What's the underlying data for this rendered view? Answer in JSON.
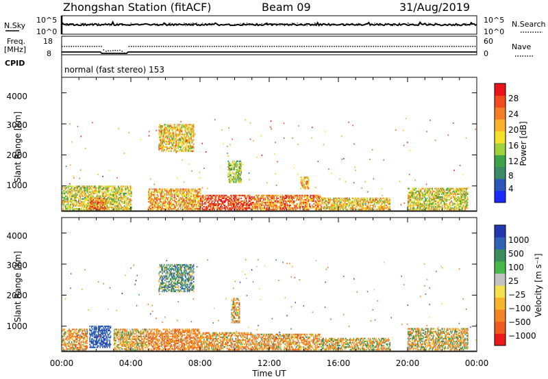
{
  "header": {
    "station": "Zhongshan Station (fitACF)",
    "beam": "Beam 09",
    "date": "31/Aug/2019"
  },
  "panels": {
    "nsky": {
      "label": "N.Sky",
      "tick_top": "10^5",
      "tick_bottom": "10^0",
      "right_tick_top": "10^5",
      "right_tick_bottom": "10^0",
      "right_label": "N.Search"
    },
    "freq": {
      "label_line1": "Freq.",
      "label_line2": "[MHz]",
      "tick_top": "18",
      "tick_bottom": "8",
      "right_tick_top": "60",
      "right_tick_bottom": "0",
      "right_label": "Nave"
    },
    "cpid": {
      "label": "CPID",
      "text": "normal (fast stereo) 153"
    }
  },
  "axes": {
    "ylabel": "Slant Range [km]",
    "xlabel": "Time UT",
    "yticks": [
      "1000",
      "2000",
      "3000",
      "4000"
    ],
    "xticks": [
      "00:00",
      "04:00",
      "08:00",
      "12:00",
      "16:00",
      "20:00",
      "00:00"
    ]
  },
  "colorbars": {
    "power": {
      "label": "Power [dB]",
      "ticks": [
        "4",
        "8",
        "12",
        "16",
        "20",
        "24",
        "28"
      ],
      "colors": [
        "#1a2bff",
        "#2a57b8",
        "#3d8a68",
        "#3fa34a",
        "#9fd23d",
        "#f6e12a",
        "#f9b32a",
        "#f57f26",
        "#f04c1e",
        "#e9151b"
      ]
    },
    "velocity": {
      "label": "Velocity [m s⁻¹]",
      "ticks": [
        "1000",
        "500",
        "100",
        "25",
        "−25",
        "−100",
        "−500",
        "−1000"
      ],
      "colors": [
        "#2238b0",
        "#2f63b6",
        "#3c8e5f",
        "#47b94a",
        "#c2c2c2",
        "#f3e14d",
        "#f8b52a",
        "#f48526",
        "#ef5a20",
        "#e91a1a"
      ]
    }
  },
  "chart_data": [
    {
      "type": "heatmap",
      "name": "power",
      "xlabel": "Time UT",
      "ylabel": "Slant Range [km]",
      "xlim": [
        0,
        24
      ],
      "ylim": [
        180,
        4500
      ],
      "xticks": [
        "00:00",
        "04:00",
        "08:00",
        "12:00",
        "16:00",
        "20:00",
        "00:00"
      ],
      "yticks": [
        1000,
        2000,
        3000,
        4000
      ],
      "colorbar": {
        "label": "Power [dB]",
        "ticks": [
          4,
          8,
          12,
          16,
          20,
          24,
          28
        ],
        "range": [
          0,
          30
        ]
      },
      "regions": [
        {
          "t": [
            0.0,
            4.0
          ],
          "r": [
            200,
            1000
          ],
          "value": 16
        },
        {
          "t": [
            1.6,
            2.5
          ],
          "r": [
            220,
            600
          ],
          "value": 24
        },
        {
          "t": [
            5.0,
            8.0
          ],
          "r": [
            200,
            900
          ],
          "value": 20
        },
        {
          "t": [
            5.6,
            7.6
          ],
          "r": [
            2100,
            3000
          ],
          "value": 18
        },
        {
          "t": [
            8.0,
            11.0
          ],
          "r": [
            220,
            700
          ],
          "value": 26
        },
        {
          "t": [
            9.6,
            10.4
          ],
          "r": [
            1100,
            1800
          ],
          "value": 14
        },
        {
          "t": [
            11.0,
            15.0
          ],
          "r": [
            220,
            700
          ],
          "value": 22
        },
        {
          "t": [
            13.8,
            14.3
          ],
          "r": [
            900,
            1300
          ],
          "value": 20
        },
        {
          "t": [
            15.0,
            19.0
          ],
          "r": [
            220,
            600
          ],
          "value": 18
        },
        {
          "t": [
            20.0,
            23.5
          ],
          "r": [
            220,
            900
          ],
          "value": 16
        }
      ]
    },
    {
      "type": "heatmap",
      "name": "velocity",
      "xlabel": "Time UT",
      "ylabel": "Slant Range [km]",
      "xlim": [
        0,
        24
      ],
      "ylim": [
        180,
        4500
      ],
      "xticks": [
        "00:00",
        "04:00",
        "08:00",
        "12:00",
        "16:00",
        "20:00",
        "00:00"
      ],
      "yticks": [
        1000,
        2000,
        3000,
        4000
      ],
      "colorbar": {
        "label": "Velocity [m s⁻¹]",
        "ticks": [
          1000,
          500,
          100,
          25,
          -25,
          -100,
          -500,
          -1000
        ]
      },
      "regions": [
        {
          "t": [
            0.0,
            1.5
          ],
          "r": [
            200,
            900
          ],
          "value": -200
        },
        {
          "t": [
            1.6,
            2.8
          ],
          "r": [
            300,
            1000
          ],
          "value": 600
        },
        {
          "t": [
            3.0,
            5.0
          ],
          "r": [
            200,
            900
          ],
          "value": -150
        },
        {
          "t": [
            5.0,
            8.0
          ],
          "r": [
            200,
            900
          ],
          "value": -300
        },
        {
          "t": [
            5.6,
            7.6
          ],
          "r": [
            2100,
            3000
          ],
          "value": 150
        },
        {
          "t": [
            8.0,
            11.0
          ],
          "r": [
            220,
            800
          ],
          "value": -200
        },
        {
          "t": [
            9.8,
            10.3
          ],
          "r": [
            1100,
            1900
          ],
          "value": -150
        },
        {
          "t": [
            11.0,
            15.0
          ],
          "r": [
            220,
            750
          ],
          "value": -200
        },
        {
          "t": [
            15.0,
            19.0
          ],
          "r": [
            220,
            600
          ],
          "value": -100
        },
        {
          "t": [
            20.0,
            23.5
          ],
          "r": [
            220,
            900
          ],
          "value": -80
        }
      ]
    }
  ]
}
